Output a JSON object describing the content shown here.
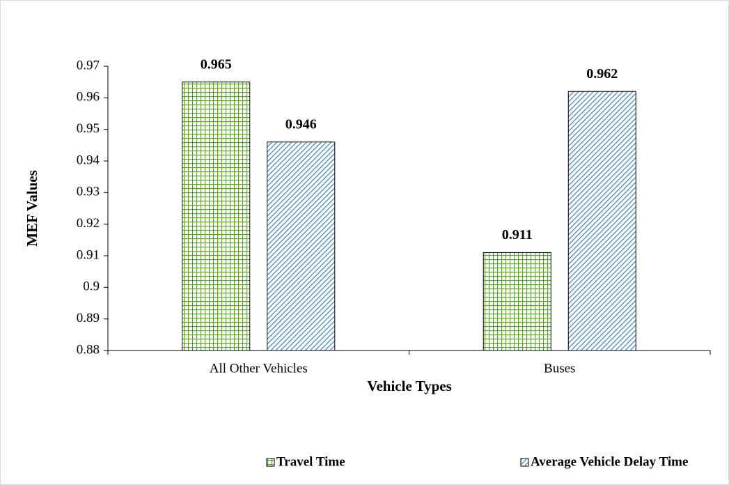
{
  "chart_data": {
    "type": "bar",
    "x_label": "Vehicle Types",
    "y_label": "MEF Values",
    "categories": [
      "All Other Vehicles",
      "Buses"
    ],
    "series": [
      {
        "name": "Travel Time",
        "color": "#5a9e32",
        "values": [
          0.965,
          0.911
        ]
      },
      {
        "name": "Average Vehicle Delay Time",
        "color": "#3f7fbf",
        "values": [
          0.946,
          0.962
        ]
      }
    ],
    "ylim": [
      0.88,
      0.97
    ],
    "yticks": [
      0.88,
      0.89,
      0.9,
      0.91,
      0.92,
      0.93,
      0.94,
      0.95,
      0.96,
      0.97
    ],
    "legend": "bottom"
  }
}
